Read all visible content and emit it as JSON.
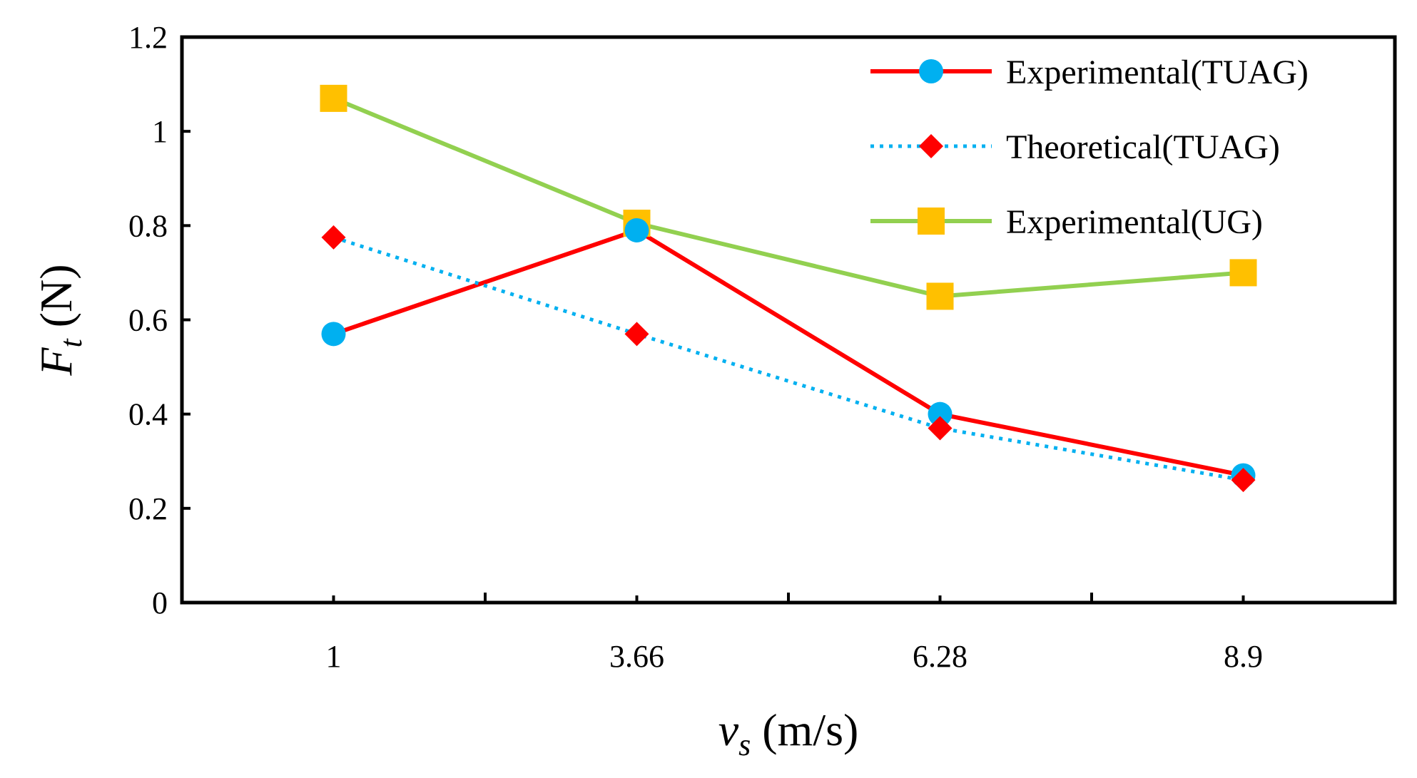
{
  "chart_data": {
    "type": "line",
    "title": "",
    "categories": [
      "1",
      "3.66",
      "6.28",
      "8.9"
    ],
    "xlabel": {
      "symbol": "v",
      "subscript": "s",
      "unit": " (m/s)"
    },
    "ylabel": {
      "symbol": "F",
      "subscript": "t",
      "unit": " (N)"
    },
    "ylim": [
      0,
      1.2
    ],
    "yticks": [
      "0",
      "0.2",
      "0.4",
      "0.6",
      "0.8",
      "1",
      "1.2"
    ],
    "grid": false,
    "legend_position": "top-right",
    "series": [
      {
        "name": "Experimental(TUAG)",
        "values": [
          0.57,
          0.79,
          0.4,
          0.27
        ],
        "color": "#ff0000",
        "marker": "circle",
        "marker_color": "#00b0f0",
        "line_style": "solid"
      },
      {
        "name": "Theoretical(TUAG)",
        "values": [
          0.775,
          0.57,
          0.37,
          0.26
        ],
        "color": "#00b0f0",
        "marker": "diamond",
        "marker_color": "#ff0000",
        "line_style": "dotted"
      },
      {
        "name": "Experimental(UG)",
        "values": [
          1.07,
          0.805,
          0.65,
          0.7
        ],
        "color": "#92d050",
        "marker": "square",
        "marker_color": "#ffc000",
        "line_style": "solid"
      }
    ]
  }
}
